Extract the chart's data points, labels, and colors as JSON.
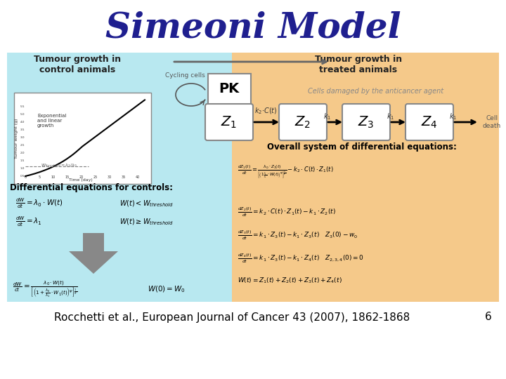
{
  "title": "Simeoni Model",
  "title_color": "#1f1f8f",
  "title_fontsize": 36,
  "background_color": "#ffffff",
  "diagram_bg_left": "#b8e8f0",
  "diagram_bg_right": "#f5c98a",
  "citation": "Rocchetti et al., European Journal of Cancer 43 (2007), 1862-1868",
  "citation_fontsize": 11,
  "page_number": "6",
  "left_title": "Tumour growth in\ncontrol animals",
  "right_title": "Tumour growth in\ntreated animals",
  "pk_label": "PK",
  "cycling_cells": "Cycling cells",
  "cell_death": "Cell\ndeath",
  "damaged_text": "Cells damaged by the anticancer agent",
  "diff_eq_title_left": "Differential equations for controls:",
  "ode_title_right": "Overall system of differential equations:"
}
